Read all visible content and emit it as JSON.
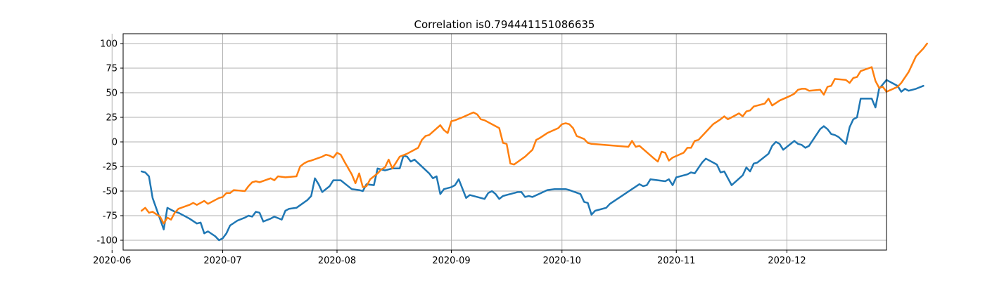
{
  "chart_data": {
    "type": "line",
    "title": "Correlation is0.794441151086635",
    "xlabel": "",
    "ylabel": "",
    "xlim": [
      "2020-06-04",
      "2020-12-28"
    ],
    "ylim": [
      -110,
      110
    ],
    "grid": true,
    "legend": "none",
    "x_tick_labels": [
      "2020-06",
      "2020-07",
      "2020-08",
      "2020-09",
      "2020-10",
      "2020-11",
      "2020-12"
    ],
    "x_ticks": [
      "2020-06-01",
      "2020-07-01",
      "2020-08-01",
      "2020-09-01",
      "2020-10-01",
      "2020-11-01",
      "2020-12-01"
    ],
    "y_ticks": [
      -100,
      -75,
      -50,
      -25,
      0,
      25,
      50,
      75,
      100
    ],
    "y_tick_labels": [
      "-100",
      "-75",
      "-50",
      "-25",
      "0",
      "25",
      "50",
      "75",
      "100"
    ],
    "series": [
      {
        "color": "#1f77b4",
        "points": [
          [
            "2020-06-09",
            -30
          ],
          [
            "2020-06-10",
            -31
          ],
          [
            "2020-06-11",
            -35
          ],
          [
            "2020-06-12",
            -57
          ],
          [
            "2020-06-15",
            -89
          ],
          [
            "2020-06-16",
            -67
          ],
          [
            "2020-06-18",
            -71
          ],
          [
            "2020-06-19",
            -72
          ],
          [
            "2020-06-22",
            -78
          ],
          [
            "2020-06-24",
            -83
          ],
          [
            "2020-06-25",
            -82
          ],
          [
            "2020-06-26",
            -93
          ],
          [
            "2020-06-27",
            -91
          ],
          [
            "2020-06-29",
            -96
          ],
          [
            "2020-06-30",
            -100
          ],
          [
            "2020-07-01",
            -98
          ],
          [
            "2020-07-02",
            -93
          ],
          [
            "2020-07-03",
            -85
          ],
          [
            "2020-07-05",
            -80
          ],
          [
            "2020-07-07",
            -77
          ],
          [
            "2020-07-08",
            -75
          ],
          [
            "2020-07-09",
            -76
          ],
          [
            "2020-07-10",
            -71
          ],
          [
            "2020-07-11",
            -72
          ],
          [
            "2020-07-12",
            -81
          ],
          [
            "2020-07-14",
            -78
          ],
          [
            "2020-07-15",
            -76
          ],
          [
            "2020-07-17",
            -79
          ],
          [
            "2020-07-18",
            -70
          ],
          [
            "2020-07-19",
            -68
          ],
          [
            "2020-07-21",
            -67
          ],
          [
            "2020-07-24",
            -59
          ],
          [
            "2020-07-25",
            -55
          ],
          [
            "2020-07-26",
            -37
          ],
          [
            "2020-07-27",
            -43
          ],
          [
            "2020-07-28",
            -51
          ],
          [
            "2020-07-30",
            -45
          ],
          [
            "2020-07-31",
            -39
          ],
          [
            "2020-08-02",
            -39
          ],
          [
            "2020-08-03",
            -42
          ],
          [
            "2020-08-05",
            -48
          ],
          [
            "2020-08-07",
            -49
          ],
          [
            "2020-08-08",
            -50
          ],
          [
            "2020-08-09",
            -43
          ],
          [
            "2020-08-11",
            -44
          ],
          [
            "2020-08-12",
            -27
          ],
          [
            "2020-08-14",
            -29
          ],
          [
            "2020-08-16",
            -27
          ],
          [
            "2020-08-18",
            -27
          ],
          [
            "2020-08-19",
            -14
          ],
          [
            "2020-08-20",
            -15
          ],
          [
            "2020-08-21",
            -20
          ],
          [
            "2020-08-22",
            -18
          ],
          [
            "2020-08-26",
            -32
          ],
          [
            "2020-08-27",
            -37
          ],
          [
            "2020-08-28",
            -35
          ],
          [
            "2020-08-29",
            -53
          ],
          [
            "2020-08-30",
            -48
          ],
          [
            "2020-09-01",
            -46
          ],
          [
            "2020-09-02",
            -44
          ],
          [
            "2020-09-03",
            -38
          ],
          [
            "2020-09-05",
            -57
          ],
          [
            "2020-09-06",
            -54
          ],
          [
            "2020-09-10",
            -58
          ],
          [
            "2020-09-11",
            -52
          ],
          [
            "2020-09-12",
            -50
          ],
          [
            "2020-09-13",
            -53
          ],
          [
            "2020-09-14",
            -58
          ],
          [
            "2020-09-15",
            -55
          ],
          [
            "2020-09-16",
            -54
          ],
          [
            "2020-09-19",
            -51
          ],
          [
            "2020-09-20",
            -51
          ],
          [
            "2020-09-21",
            -56
          ],
          [
            "2020-09-22",
            -55
          ],
          [
            "2020-09-23",
            -56
          ],
          [
            "2020-09-27",
            -49
          ],
          [
            "2020-09-29",
            -48
          ],
          [
            "2020-10-02",
            -48
          ],
          [
            "2020-10-03",
            -49
          ],
          [
            "2020-10-06",
            -53
          ],
          [
            "2020-10-07",
            -61
          ],
          [
            "2020-10-08",
            -62
          ],
          [
            "2020-10-09",
            -74
          ],
          [
            "2020-10-10",
            -70
          ],
          [
            "2020-10-13",
            -67
          ],
          [
            "2020-10-14",
            -63
          ],
          [
            "2020-10-22",
            -43
          ],
          [
            "2020-10-23",
            -45
          ],
          [
            "2020-10-24",
            -44
          ],
          [
            "2020-10-25",
            -38
          ],
          [
            "2020-10-29",
            -40
          ],
          [
            "2020-10-30",
            -38
          ],
          [
            "2020-10-31",
            -44
          ],
          [
            "2020-11-01",
            -36
          ],
          [
            "2020-11-04",
            -33
          ],
          [
            "2020-11-05",
            -31
          ],
          [
            "2020-11-06",
            -32
          ],
          [
            "2020-11-08",
            -21
          ],
          [
            "2020-11-09",
            -17
          ],
          [
            "2020-11-12",
            -23
          ],
          [
            "2020-11-13",
            -31
          ],
          [
            "2020-11-14",
            -30
          ],
          [
            "2020-11-16",
            -44
          ],
          [
            "2020-11-19",
            -34
          ],
          [
            "2020-11-20",
            -26
          ],
          [
            "2020-11-21",
            -30
          ],
          [
            "2020-11-22",
            -22
          ],
          [
            "2020-11-23",
            -21
          ],
          [
            "2020-11-26",
            -12
          ],
          [
            "2020-11-27",
            -4
          ],
          [
            "2020-11-28",
            0
          ],
          [
            "2020-11-29",
            -2
          ],
          [
            "2020-11-30",
            -8
          ],
          [
            "2020-12-03",
            1
          ],
          [
            "2020-12-04",
            -2
          ],
          [
            "2020-12-05",
            -3
          ],
          [
            "2020-12-06",
            -6
          ],
          [
            "2020-12-07",
            -4
          ],
          [
            "2020-12-10",
            13
          ],
          [
            "2020-12-11",
            16
          ],
          [
            "2020-12-12",
            13
          ],
          [
            "2020-12-13",
            8
          ],
          [
            "2020-12-14",
            7
          ],
          [
            "2020-12-15",
            5
          ],
          [
            "2020-12-17",
            -2
          ],
          [
            "2020-12-18",
            15
          ],
          [
            "2020-12-19",
            23
          ],
          [
            "2020-12-20",
            25
          ],
          [
            "2020-12-21",
            44
          ],
          [
            "2020-12-24",
            44
          ],
          [
            "2020-12-25",
            35
          ],
          [
            "2020-12-26",
            54
          ],
          [
            "2020-12-28",
            63
          ],
          [
            "2020-12-31",
            57
          ],
          [
            "2021-01-01",
            51
          ],
          [
            "2021-01-02",
            54
          ],
          [
            "2021-01-03",
            52
          ],
          [
            "2021-01-05",
            54
          ],
          [
            "2021-01-07",
            57
          ]
        ]
      },
      {
        "color": "#ff7f0e",
        "points": [
          [
            "2020-06-09",
            -70
          ],
          [
            "2020-06-10",
            -67
          ],
          [
            "2020-06-11",
            -72
          ],
          [
            "2020-06-12",
            -71
          ],
          [
            "2020-06-14",
            -76
          ],
          [
            "2020-06-15",
            -83
          ],
          [
            "2020-06-16",
            -77
          ],
          [
            "2020-06-17",
            -79
          ],
          [
            "2020-06-18",
            -72
          ],
          [
            "2020-06-19",
            -68
          ],
          [
            "2020-06-22",
            -64
          ],
          [
            "2020-06-23",
            -62
          ],
          [
            "2020-06-24",
            -64
          ],
          [
            "2020-06-25",
            -62
          ],
          [
            "2020-06-26",
            -60
          ],
          [
            "2020-06-27",
            -63
          ],
          [
            "2020-06-30",
            -57
          ],
          [
            "2020-07-01",
            -56
          ],
          [
            "2020-07-02",
            -52
          ],
          [
            "2020-07-03",
            -52
          ],
          [
            "2020-07-04",
            -49
          ],
          [
            "2020-07-07",
            -50
          ],
          [
            "2020-07-08",
            -45
          ],
          [
            "2020-07-09",
            -41
          ],
          [
            "2020-07-10",
            -40
          ],
          [
            "2020-07-11",
            -41
          ],
          [
            "2020-07-14",
            -37
          ],
          [
            "2020-07-15",
            -39
          ],
          [
            "2020-07-16",
            -35
          ],
          [
            "2020-07-18",
            -36
          ],
          [
            "2020-07-21",
            -35
          ],
          [
            "2020-07-22",
            -25
          ],
          [
            "2020-07-23",
            -22
          ],
          [
            "2020-07-24",
            -20
          ],
          [
            "2020-07-25",
            -19
          ],
          [
            "2020-07-28",
            -15
          ],
          [
            "2020-07-29",
            -13
          ],
          [
            "2020-07-30",
            -14
          ],
          [
            "2020-07-31",
            -16
          ],
          [
            "2020-08-01",
            -11
          ],
          [
            "2020-08-02",
            -13
          ],
          [
            "2020-08-03",
            -20
          ],
          [
            "2020-08-05",
            -33
          ],
          [
            "2020-08-06",
            -42
          ],
          [
            "2020-08-07",
            -32
          ],
          [
            "2020-08-08",
            -46
          ],
          [
            "2020-08-09",
            -45
          ],
          [
            "2020-08-10",
            -38
          ],
          [
            "2020-08-12",
            -32
          ],
          [
            "2020-08-13",
            -28
          ],
          [
            "2020-08-14",
            -26
          ],
          [
            "2020-08-15",
            -18
          ],
          [
            "2020-08-16",
            -27
          ],
          [
            "2020-08-17",
            -21
          ],
          [
            "2020-08-18",
            -15
          ],
          [
            "2020-08-20",
            -12
          ],
          [
            "2020-08-23",
            -6
          ],
          [
            "2020-08-24",
            2
          ],
          [
            "2020-08-25",
            6
          ],
          [
            "2020-08-26",
            7
          ],
          [
            "2020-08-29",
            17
          ],
          [
            "2020-08-30",
            12
          ],
          [
            "2020-08-31",
            9
          ],
          [
            "2020-09-01",
            21
          ],
          [
            "2020-09-02",
            22
          ],
          [
            "2020-09-04",
            25
          ],
          [
            "2020-09-07",
            30
          ],
          [
            "2020-09-08",
            28
          ],
          [
            "2020-09-09",
            23
          ],
          [
            "2020-09-10",
            22
          ],
          [
            "2020-09-14",
            14
          ],
          [
            "2020-09-15",
            -1
          ],
          [
            "2020-09-16",
            -2
          ],
          [
            "2020-09-17",
            -22
          ],
          [
            "2020-09-18",
            -23
          ],
          [
            "2020-09-21",
            -15
          ],
          [
            "2020-09-23",
            -8
          ],
          [
            "2020-09-24",
            2
          ],
          [
            "2020-09-25",
            4
          ],
          [
            "2020-09-27",
            9
          ],
          [
            "2020-09-30",
            14
          ],
          [
            "2020-10-01",
            18
          ],
          [
            "2020-10-02",
            19
          ],
          [
            "2020-10-03",
            18
          ],
          [
            "2020-10-04",
            14
          ],
          [
            "2020-10-05",
            6
          ],
          [
            "2020-10-07",
            3
          ],
          [
            "2020-10-08",
            -1
          ],
          [
            "2020-10-09",
            -2
          ],
          [
            "2020-10-19",
            -5
          ],
          [
            "2020-10-20",
            1
          ],
          [
            "2020-10-21",
            -5
          ],
          [
            "2020-10-22",
            -4
          ],
          [
            "2020-10-26",
            -17
          ],
          [
            "2020-10-27",
            -20
          ],
          [
            "2020-10-28",
            -10
          ],
          [
            "2020-10-29",
            -11
          ],
          [
            "2020-10-30",
            -19
          ],
          [
            "2020-10-31",
            -16
          ],
          [
            "2020-11-03",
            -11
          ],
          [
            "2020-11-04",
            -6
          ],
          [
            "2020-11-05",
            -6
          ],
          [
            "2020-11-06",
            1
          ],
          [
            "2020-11-07",
            2
          ],
          [
            "2020-11-10",
            14
          ],
          [
            "2020-11-11",
            18
          ],
          [
            "2020-11-13",
            23
          ],
          [
            "2020-11-14",
            26
          ],
          [
            "2020-11-15",
            23
          ],
          [
            "2020-11-16",
            25
          ],
          [
            "2020-11-18",
            29
          ],
          [
            "2020-11-19",
            26
          ],
          [
            "2020-11-20",
            31
          ],
          [
            "2020-11-21",
            32
          ],
          [
            "2020-11-22",
            36
          ],
          [
            "2020-11-25",
            39
          ],
          [
            "2020-11-26",
            44
          ],
          [
            "2020-11-27",
            37
          ],
          [
            "2020-11-29",
            42
          ],
          [
            "2020-12-02",
            47
          ],
          [
            "2020-12-03",
            49
          ],
          [
            "2020-12-04",
            53
          ],
          [
            "2020-12-05",
            54
          ],
          [
            "2020-12-06",
            54
          ],
          [
            "2020-12-07",
            52
          ],
          [
            "2020-12-10",
            53
          ],
          [
            "2020-12-11",
            48
          ],
          [
            "2020-12-12",
            56
          ],
          [
            "2020-12-13",
            57
          ],
          [
            "2020-12-14",
            64
          ],
          [
            "2020-12-17",
            63
          ],
          [
            "2020-12-18",
            60
          ],
          [
            "2020-12-19",
            65
          ],
          [
            "2020-12-20",
            66
          ],
          [
            "2020-12-21",
            72
          ],
          [
            "2020-12-24",
            76
          ],
          [
            "2020-12-25",
            62
          ],
          [
            "2020-12-26",
            55
          ],
          [
            "2020-12-27",
            56
          ],
          [
            "2020-12-28",
            51
          ],
          [
            "2020-12-31",
            56
          ],
          [
            "2021-01-01",
            60
          ],
          [
            "2021-01-03",
            71
          ],
          [
            "2021-01-05",
            87
          ],
          [
            "2021-01-07",
            95
          ],
          [
            "2021-01-08",
            100
          ]
        ]
      }
    ]
  }
}
